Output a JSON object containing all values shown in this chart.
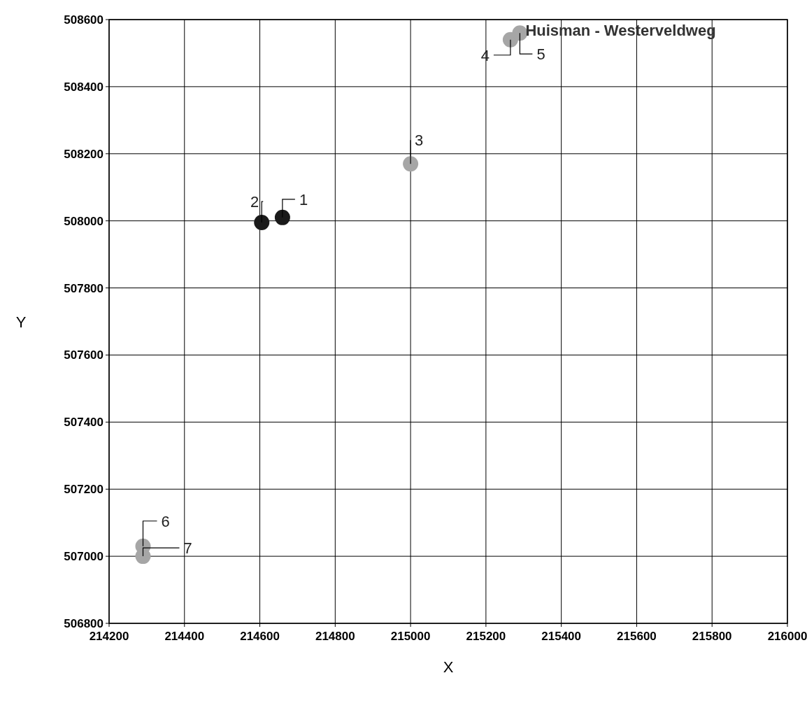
{
  "chart_data": {
    "type": "scatter",
    "xlabel": "X",
    "ylabel": "Y",
    "xlim": [
      214200,
      216000
    ],
    "xticks": [
      214200,
      214400,
      214600,
      214800,
      215000,
      215200,
      215400,
      215600,
      215800,
      216000
    ],
    "ylim": [
      506800,
      508600
    ],
    "yticks": [
      506800,
      507000,
      507200,
      507400,
      507600,
      507800,
      508000,
      508200,
      508400,
      508600
    ],
    "grid": true,
    "marker": "circle",
    "series": [
      {
        "color": "#1a1a1a",
        "x": [
          214660,
          214605
        ],
        "values": [
          508010,
          507995
        ]
      },
      {
        "color": "#a6a6a6",
        "x": [
          215000,
          215265,
          215290,
          214290,
          214290
        ],
        "values": [
          508170,
          508540,
          508560,
          507030,
          507000
        ]
      }
    ],
    "annotations": [
      {
        "text": "1",
        "x": 214660,
        "y": 508010
      },
      {
        "text": "2",
        "x": 214605,
        "y": 507995
      },
      {
        "text": "3",
        "x": 215000,
        "y": 508170
      },
      {
        "text": "4",
        "x": 215265,
        "y": 508540
      },
      {
        "text": "5",
        "x": 215290,
        "y": 508560
      },
      {
        "text": "6",
        "x": 214290,
        "y": 507030
      },
      {
        "text": "7",
        "x": 214290,
        "y": 507000
      },
      {
        "text": "Huisman - Westerveldweg",
        "x": 215290,
        "y": 508560
      }
    ]
  }
}
